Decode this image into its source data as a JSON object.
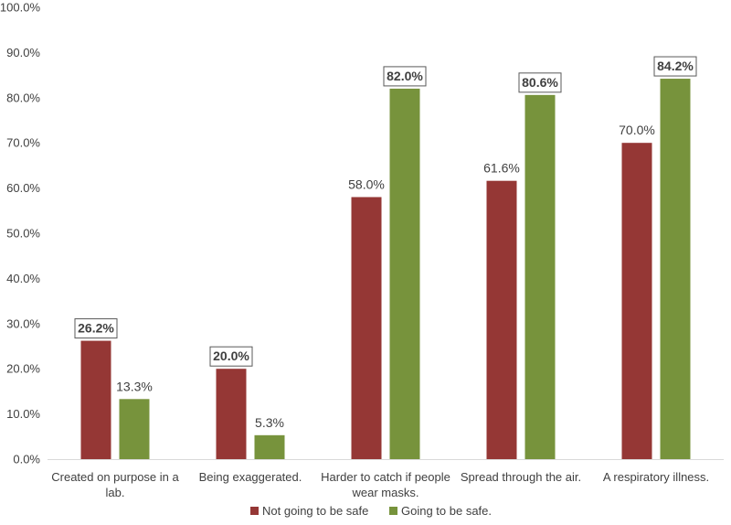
{
  "chart_data": {
    "type": "bar",
    "title": "",
    "xlabel": "",
    "ylabel": "",
    "ylim": [
      0,
      100
    ],
    "y_tick_step": 10,
    "y_tick_labels": [
      "0.0%",
      "10.0%",
      "20.0%",
      "30.0%",
      "40.0%",
      "50.0%",
      "60.0%",
      "70.0%",
      "80.0%",
      "90.0%",
      "100.0%"
    ],
    "grid": false,
    "legend_position": "bottom",
    "categories": [
      [
        "Created on purpose in a",
        "lab."
      ],
      [
        "Being exaggerated."
      ],
      [
        "Harder to catch if people",
        "wear masks."
      ],
      [
        "Spread through the air."
      ],
      [
        "A respiratory illness."
      ]
    ],
    "series": [
      {
        "name": "Not going to be safe",
        "color": "#953735",
        "values": [
          26.2,
          20.0,
          58.0,
          61.6,
          70.0
        ],
        "labels": [
          "26.2%",
          "20.0%",
          "58.0%",
          "61.6%",
          "70.0%"
        ],
        "highlighted": [
          true,
          true,
          false,
          false,
          false
        ]
      },
      {
        "name": "Going to be safe.",
        "color": "#77933C",
        "values": [
          13.3,
          5.3,
          82.0,
          80.6,
          84.2
        ],
        "labels": [
          "13.3%",
          "5.3%",
          "82.0%",
          "80.6%",
          "84.2%"
        ],
        "highlighted": [
          false,
          false,
          true,
          true,
          true
        ]
      }
    ]
  }
}
